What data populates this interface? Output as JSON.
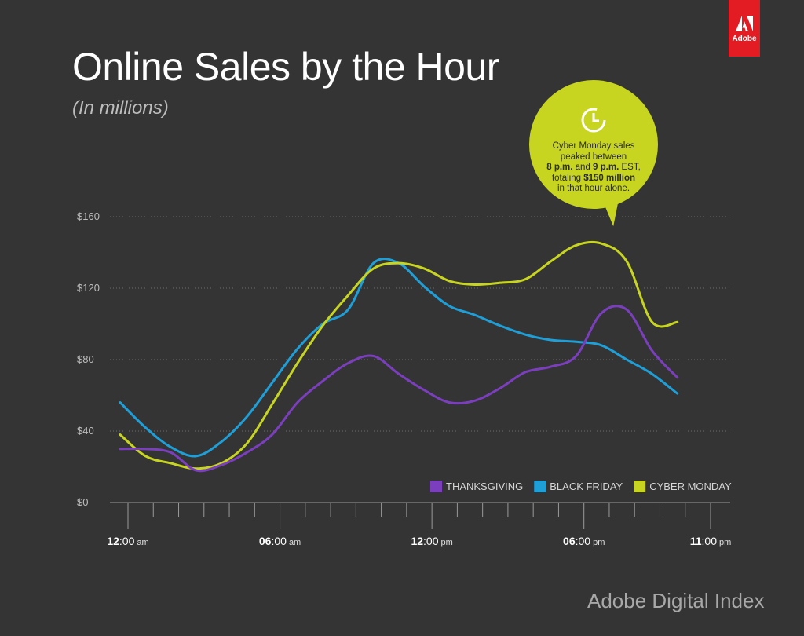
{
  "header": {
    "title": "Online Sales by the Hour",
    "subtitle": "(In millions)"
  },
  "brand": {
    "logo_text": "Adobe",
    "logo_color": "#e31b23",
    "footer": "Adobe Digital Index"
  },
  "callout": {
    "icon": "clock-icon",
    "color": "#c7d521",
    "line1": "Cyber Monday sales",
    "line2": "peaked between",
    "line3_a": "8 p.m.",
    "line3_b": " and ",
    "line3_c": "9 p.m.",
    "line3_d": " EST,",
    "line4_a": "totaling ",
    "line4_b": "$150 million",
    "line5": "in that hour alone."
  },
  "chart_data": {
    "type": "line",
    "x": [
      0,
      1,
      2,
      3,
      4,
      5,
      6,
      7,
      8,
      9,
      10,
      11,
      12,
      13,
      14,
      15,
      16,
      17,
      18,
      19,
      20,
      21,
      22,
      23
    ],
    "x_tick_labels": [
      {
        "x": 0,
        "main": "12",
        "rest": ":00",
        "suffix": "am"
      },
      {
        "x": 6,
        "main": "06",
        "rest": ":00",
        "suffix": "am"
      },
      {
        "x": 12,
        "main": "12",
        "rest": ":00",
        "suffix": "pm"
      },
      {
        "x": 18,
        "main": "06",
        "rest": ":00",
        "suffix": "pm"
      },
      {
        "x": 23,
        "main": "11",
        "rest": ":00",
        "suffix": "pm"
      }
    ],
    "y_ticks": [
      0,
      40,
      80,
      120,
      160
    ],
    "y_tick_labels": [
      "$0",
      "$40",
      "$80",
      "$120",
      "$160"
    ],
    "ylim": [
      0,
      160
    ],
    "xlim": [
      0,
      23
    ],
    "grid": true,
    "legend_position": "bottom-right",
    "series": [
      {
        "name": "THANKSGIVING",
        "color": "#7b3fbe",
        "values": [
          30,
          30,
          28,
          18,
          21,
          28,
          38,
          56,
          68,
          78,
          82,
          72,
          63,
          56,
          57,
          64,
          73,
          76,
          82,
          106,
          108,
          85,
          70,
          70
        ]
      },
      {
        "name": "BLACK FRIDAY",
        "color": "#1f9fd8",
        "values": [
          56,
          42,
          31,
          26,
          34,
          48,
          67,
          86,
          100,
          108,
          134,
          134,
          121,
          110,
          105,
          99,
          94,
          91,
          90,
          88,
          80,
          72,
          61,
          61
        ]
      },
      {
        "name": "CYBER MONDAY",
        "color": "#c7d521",
        "values": [
          38,
          26,
          22,
          19,
          22,
          33,
          55,
          78,
          99,
          116,
          131,
          134,
          131,
          124,
          122,
          123,
          125,
          135,
          144,
          145,
          135,
          101,
          101,
          101
        ]
      }
    ]
  }
}
